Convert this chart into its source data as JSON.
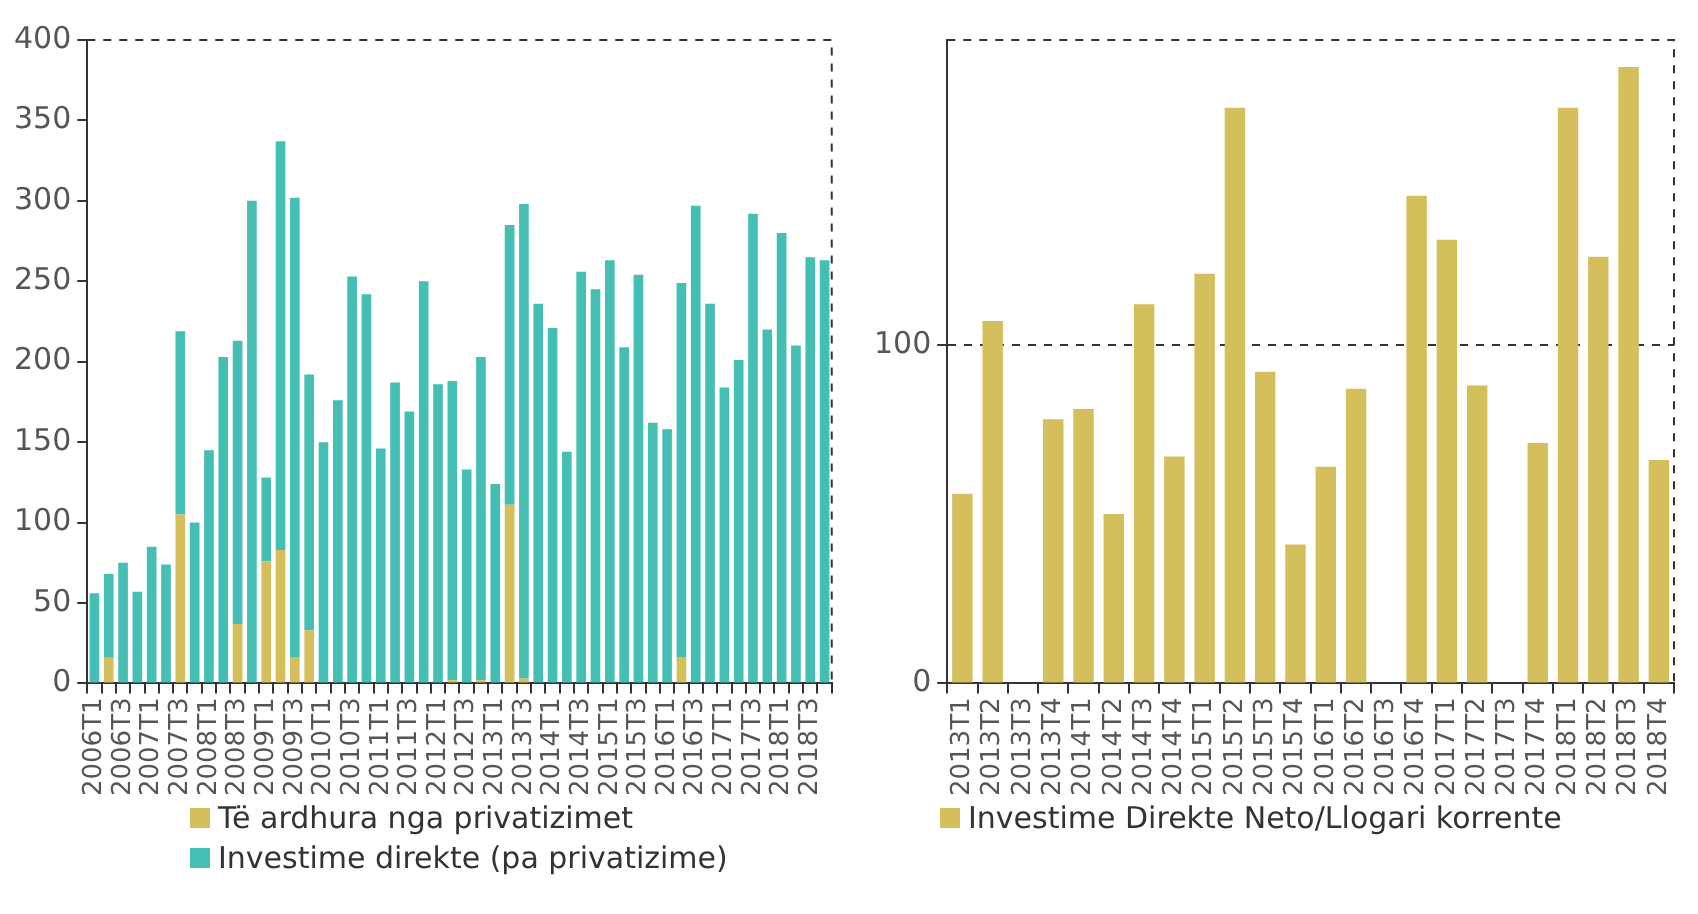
{
  "chart_data": [
    {
      "type": "bar",
      "stacked": true,
      "categories": [
        "2006T1",
        null,
        "2006T3",
        null,
        "2007T1",
        null,
        "2007T3",
        null,
        "2008T1",
        null,
        "2008T3",
        null,
        "2009T1",
        null,
        "2009T3",
        null,
        "2010T1",
        null,
        "2010T3",
        null,
        "2011T1",
        null,
        "2011T3",
        null,
        "2012T1",
        null,
        "2012T3",
        null,
        "2013T1",
        null,
        "2013T3",
        null,
        "2014T1",
        null,
        "2014T3",
        null,
        "2015T1",
        null,
        "2015T3",
        null,
        "2016T1",
        null,
        "2016T3",
        null,
        "2017T1",
        null,
        "2017T3",
        null,
        "2018T1",
        null,
        "2018T3",
        null
      ],
      "series": [
        {
          "name": "Të ardhura nga privatizimet",
          "color": "#d4bf5c",
          "values": [
            0,
            16,
            0,
            0,
            0,
            0,
            105,
            0,
            0,
            0,
            37,
            0,
            76,
            83,
            16,
            33,
            0,
            0,
            0,
            0,
            0,
            0,
            0,
            0,
            0,
            2,
            0,
            2,
            0,
            111,
            3,
            0,
            0,
            0,
            0,
            0,
            0,
            0,
            0,
            0,
            0,
            16,
            0,
            0,
            0,
            0,
            0,
            0,
            0,
            0,
            0,
            0
          ]
        },
        {
          "name": "Investime direkte (pa privatizime)",
          "color": "#45bfb3",
          "values": [
            56,
            52,
            75,
            57,
            85,
            74,
            114,
            100,
            145,
            203,
            176,
            300,
            52,
            254,
            286,
            159,
            150,
            176,
            253,
            242,
            146,
            187,
            169,
            250,
            186,
            186,
            133,
            201,
            124,
            174,
            295,
            236,
            221,
            144,
            256,
            245,
            263,
            209,
            254,
            162,
            158,
            233,
            297,
            236,
            184,
            201,
            292,
            220,
            280,
            210,
            265,
            263
          ]
        }
      ],
      "ylim": [
        0,
        400
      ],
      "yticks": [
        0,
        50,
        100,
        150,
        200,
        250,
        300,
        350,
        400
      ],
      "grid": false,
      "legend": "bottom"
    },
    {
      "type": "bar",
      "categories": [
        "2013T1",
        "2013T2",
        "2013T3",
        "2013T4",
        "2014T1",
        "2014T2",
        "2014T3",
        "2014T4",
        "2015T1",
        "2015T2",
        "2015T3",
        "2015T4",
        "2016T1",
        "2016T2",
        "2016T3",
        "2016T4",
        "2017T1",
        "2017T2",
        "2017T3",
        "2017T4",
        "2018T1",
        "2018T2",
        "2018T3",
        "2018T4"
      ],
      "series": [
        {
          "name": "Investime Direkte Neto/Llogari korrente",
          "color": "#d4bf5c",
          "values": [
            56,
            107,
            null,
            78,
            81,
            50,
            112,
            67,
            121,
            170,
            92,
            41,
            64,
            87,
            null,
            144,
            131,
            88,
            null,
            71,
            170,
            126,
            182,
            66
          ]
        }
      ],
      "ylim": [
        0,
        190
      ],
      "yticks": [
        0,
        100
      ],
      "grid": "y",
      "legend": "bottom"
    }
  ]
}
